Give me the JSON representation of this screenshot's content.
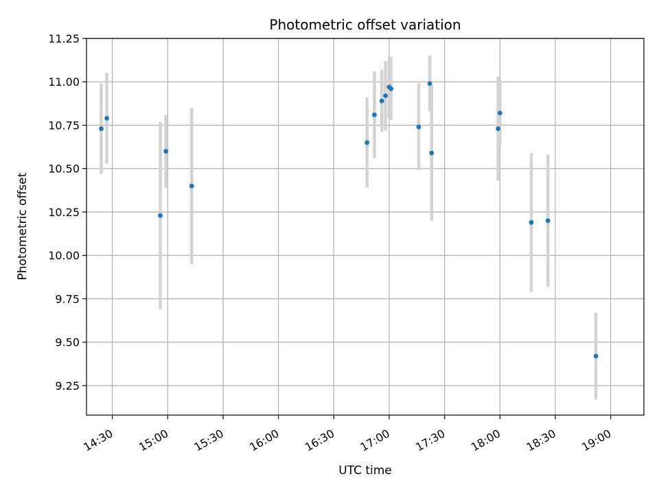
{
  "chart_data": {
    "type": "scatter",
    "title": "Photometric offset variation",
    "xlabel": "UTC time",
    "ylabel": "Photometric offset",
    "xlim": [
      "14:16",
      "19:18"
    ],
    "ylim": [
      9.08,
      11.25
    ],
    "x_ticks": [
      "14:30",
      "15:00",
      "15:30",
      "16:00",
      "16:30",
      "17:00",
      "17:30",
      "18:00",
      "18:30",
      "19:00"
    ],
    "y_ticks": [
      "9.25",
      "9.50",
      "9.75",
      "10.00",
      "10.25",
      "10.50",
      "10.75",
      "11.00",
      "11.25"
    ],
    "grid": true,
    "legend": "none",
    "colors": {
      "points": "#1f77b4",
      "error_bars": "#d3d3d3",
      "grid": "#b0b0b0"
    },
    "series": [
      {
        "x": [
          "14:24",
          "14:27",
          "14:56",
          "14:59",
          "15:13",
          "16:48",
          "16:52",
          "16:56",
          "16:58",
          "17:00",
          "17:01",
          "17:16",
          "17:22",
          "17:23",
          "17:59",
          "18:00",
          "18:17",
          "18:26",
          "18:52"
        ],
        "y": [
          10.73,
          10.79,
          10.23,
          10.6,
          10.4,
          10.65,
          10.81,
          10.89,
          10.92,
          10.97,
          10.96,
          10.74,
          10.99,
          10.59,
          10.73,
          10.82,
          10.19,
          10.2,
          9.42
        ],
        "err": [
          0.26,
          0.26,
          0.54,
          0.21,
          0.45,
          0.26,
          0.25,
          0.18,
          0.2,
          0.18,
          0.18,
          0.25,
          0.16,
          0.39,
          0.3,
          0.19,
          0.4,
          0.38,
          0.25
        ]
      }
    ]
  }
}
